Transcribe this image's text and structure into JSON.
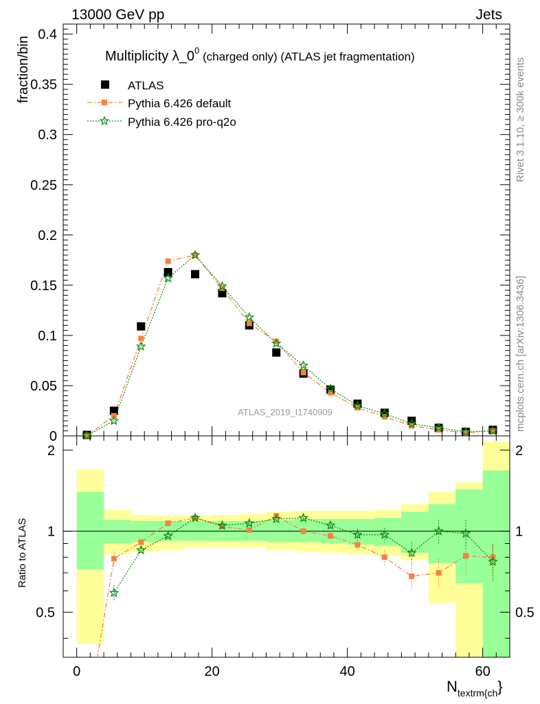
{
  "header": {
    "left": "13000 GeV pp",
    "right": "Jets"
  },
  "title": {
    "main": "Multiplicity λ_0",
    "sup": "0",
    "rest": " (charged only) (ATLAS jet fragmentation)"
  },
  "side": {
    "rivet": "Rivet 3.1.10, ≥ 300k events",
    "mcplots": "mcplots.cern.ch [arXiv:1306.3436]"
  },
  "watermark": "ATLAS_2019_I1740909",
  "xlabel": {
    "main": "N",
    "sub": "textrm{ch",
    "close": "}"
  },
  "ylabel_main": "fraction/bin",
  "ylabel_ratio": "Ratio to ATLAS",
  "legend": [
    {
      "key": "atlas",
      "label": "ATLAS"
    },
    {
      "key": "py_default",
      "label": "Pythia 6.426 default"
    },
    {
      "key": "py_proq2o",
      "label": "Pythia 6.426 pro-q2o"
    }
  ],
  "colors": {
    "atlas": "#000000",
    "py_default": "#f6823c",
    "py_proq2o": "#108c10",
    "band_outer": "#ffff99",
    "band_inner": "#99ff99"
  },
  "chart_data": {
    "type": "scatter",
    "xlim": [
      -2,
      64
    ],
    "main_ylim": [
      0,
      0.41
    ],
    "ratio_ylim": [
      0.34,
      2.26
    ],
    "xticks": [
      0,
      20,
      40,
      60
    ],
    "xtick_labels": [
      "0",
      "20",
      "40",
      "60"
    ],
    "main_yticks": [
      0,
      0.05,
      0.1,
      0.15,
      0.2,
      0.25,
      0.3,
      0.35,
      0.4
    ],
    "main_ytick_labels": [
      "0",
      "0.05",
      "0.1",
      "0.15",
      "0.2",
      "0.25",
      "0.3",
      "0.35",
      "0.4"
    ],
    "ratio_yticks": [
      0.5,
      1,
      2
    ],
    "ratio_ytick_labels": [
      "0.5",
      "1",
      "2"
    ],
    "bins": [
      [
        0,
        4
      ],
      [
        4,
        8
      ],
      [
        8,
        12
      ],
      [
        12,
        16
      ],
      [
        16,
        20
      ],
      [
        20,
        24
      ],
      [
        24,
        28
      ],
      [
        28,
        32
      ],
      [
        32,
        36
      ],
      [
        36,
        40
      ],
      [
        40,
        44
      ],
      [
        44,
        48
      ],
      [
        48,
        52
      ],
      [
        52,
        56
      ],
      [
        56,
        60
      ],
      [
        60,
        64
      ]
    ],
    "x": [
      1.5,
      5.5,
      9.5,
      13.5,
      17.5,
      21.5,
      25.5,
      29.5,
      33.5,
      37.5,
      41.5,
      45.5,
      49.5,
      53.5,
      57.5,
      61.5
    ],
    "series": [
      {
        "key": "atlas",
        "name": "ATLAS",
        "values": [
          0.001,
          0.025,
          0.109,
          0.163,
          0.161,
          0.142,
          0.11,
          0.083,
          0.062,
          0.046,
          0.032,
          0.023,
          0.015,
          0.008,
          0.004,
          0.006
        ]
      },
      {
        "key": "py_default",
        "name": "Pythia 6.426 default",
        "values": [
          0.0003,
          0.02,
          0.097,
          0.174,
          0.18,
          0.147,
          0.112,
          0.094,
          0.063,
          0.043,
          0.028,
          0.019,
          0.01,
          0.006,
          0.003,
          0.005
        ]
      },
      {
        "key": "py_proq2o",
        "name": "Pythia 6.426 pro-q2o",
        "values": [
          0.0002,
          0.015,
          0.089,
          0.157,
          0.18,
          0.149,
          0.118,
          0.092,
          0.07,
          0.047,
          0.03,
          0.022,
          0.012,
          0.008,
          0.004,
          0.005
        ]
      }
    ],
    "ratio_series": [
      {
        "key": "py_default",
        "x": [
          1.5,
          5.5,
          9.5,
          13.5,
          17.5,
          21.5,
          25.5,
          29.5,
          33.5,
          37.5,
          41.5,
          45.5,
          49.5,
          53.5,
          57.5,
          61.5
        ],
        "values": [
          0.2,
          0.79,
          0.91,
          1.07,
          1.12,
          1.04,
          1.01,
          1.14,
          1.0,
          0.96,
          0.89,
          0.8,
          0.68,
          0.7,
          0.81,
          0.8
        ],
        "errors": [
          0.1,
          0.05,
          0.02,
          0.02,
          0.02,
          0.02,
          0.02,
          0.02,
          0.03,
          0.03,
          0.04,
          0.05,
          0.07,
          0.09,
          0.12,
          0.1
        ]
      },
      {
        "key": "py_proq2o",
        "x": [
          5.5,
          9.5,
          13.5,
          17.5,
          21.5,
          25.5,
          29.5,
          33.5,
          37.5,
          41.5,
          45.5,
          49.5,
          53.5,
          57.5,
          61.5
        ],
        "values": [
          0.59,
          0.85,
          0.96,
          1.12,
          1.05,
          1.07,
          1.11,
          1.12,
          1.05,
          0.97,
          0.97,
          0.83,
          1.0,
          0.98,
          0.77
        ],
        "errors": [
          0.04,
          0.02,
          0.02,
          0.02,
          0.02,
          0.02,
          0.02,
          0.03,
          0.03,
          0.05,
          0.06,
          0.08,
          0.1,
          0.12,
          0.12
        ]
      }
    ],
    "band_outer": [
      [
        0.38,
        1.7
      ],
      [
        0.82,
        1.2
      ],
      [
        0.84,
        1.15
      ],
      [
        0.85,
        1.14
      ],
      [
        0.87,
        1.14
      ],
      [
        0.87,
        1.15
      ],
      [
        0.87,
        1.16
      ],
      [
        0.85,
        1.18
      ],
      [
        0.84,
        1.19
      ],
      [
        0.83,
        1.19
      ],
      [
        0.82,
        1.19
      ],
      [
        0.81,
        1.2
      ],
      [
        0.78,
        1.26
      ],
      [
        0.54,
        1.4
      ],
      [
        0.34,
        1.52
      ],
      [
        0.34,
        2.15
      ]
    ],
    "band_inner": [
      [
        0.72,
        1.4
      ],
      [
        0.9,
        1.1
      ],
      [
        0.91,
        1.09
      ],
      [
        0.92,
        1.09
      ],
      [
        0.92,
        1.09
      ],
      [
        0.92,
        1.09
      ],
      [
        0.92,
        1.09
      ],
      [
        0.91,
        1.1
      ],
      [
        0.91,
        1.11
      ],
      [
        0.9,
        1.11
      ],
      [
        0.89,
        1.11
      ],
      [
        0.88,
        1.12
      ],
      [
        0.83,
        1.18
      ],
      [
        0.76,
        1.26
      ],
      [
        0.64,
        1.43
      ],
      [
        0.34,
        1.68
      ]
    ]
  }
}
